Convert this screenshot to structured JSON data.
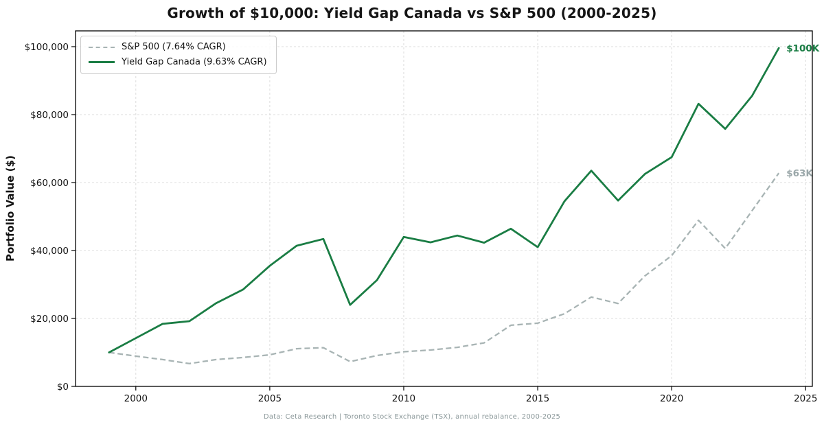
{
  "footer": {
    "caption": "Data: Ceta Research | Toronto Stock Exchange (TSX), annual rebalance, 2000-2025"
  },
  "colors": {
    "sp500_line": "#a8b4b4",
    "yield_gap_line": "#1a7d44",
    "sp500_annotation": "#9aa7a9",
    "yield_gap_annotation": "#1a7d44",
    "grid": "#dcdcdc",
    "spine": "#000000",
    "tick_label": "#141414",
    "footer_text": "#8b989a"
  },
  "chart_data": {
    "type": "line",
    "title": "Growth of $10,000: Yield Gap Canada vs S&P 500 (2000-2025)",
    "xlabel": "",
    "ylabel": "Portfolio Value ($)",
    "grid": true,
    "legend_position": "upper-left",
    "xlim": [
      1997.75,
      2025.25
    ],
    "ylim": [
      0,
      104650
    ],
    "x_ticks": [
      {
        "value": 2000,
        "label": "2000"
      },
      {
        "value": 2005,
        "label": "2005"
      },
      {
        "value": 2010,
        "label": "2010"
      },
      {
        "value": 2015,
        "label": "2015"
      },
      {
        "value": 2020,
        "label": "2020"
      },
      {
        "value": 2025,
        "label": "2025"
      }
    ],
    "y_ticks": [
      {
        "value": 0,
        "label": "$0"
      },
      {
        "value": 20000,
        "label": "$20,000"
      },
      {
        "value": 40000,
        "label": "$40,000"
      },
      {
        "value": 60000,
        "label": "$60,000"
      },
      {
        "value": 80000,
        "label": "$80,000"
      },
      {
        "value": 100000,
        "label": "$100,000"
      }
    ],
    "x": [
      1999,
      2000,
      2001,
      2002,
      2003,
      2004,
      2005,
      2006,
      2007,
      2008,
      2009,
      2010,
      2011,
      2012,
      2013,
      2014,
      2015,
      2016,
      2017,
      2018,
      2019,
      2020,
      2021,
      2022,
      2023,
      2024
    ],
    "series": [
      {
        "id": "sp500",
        "name": "S&P 500 (7.64% CAGR)",
        "style": "dashed",
        "color": "#a8b4b4",
        "end_label": "$63K",
        "end_label_color": "#9aa7a9",
        "values": [
          10000,
          8900,
          7900,
          6700,
          7900,
          8500,
          9300,
          11100,
          11400,
          7300,
          9100,
          10200,
          10700,
          11500,
          12800,
          18000,
          18600,
          21400,
          26300,
          24400,
          32500,
          38500,
          48900,
          40600,
          51700,
          62800
        ]
      },
      {
        "id": "yield-gap-canada",
        "name": "Yield Gap Canada (9.63% CAGR)",
        "style": "solid",
        "color": "#1a7d44",
        "end_label": "$100K",
        "end_label_color": "#1a7d44",
        "values": [
          10000,
          14200,
          18400,
          19200,
          24500,
          28500,
          35500,
          41400,
          43400,
          24000,
          31300,
          44000,
          42400,
          44400,
          42300,
          46400,
          41000,
          54500,
          63500,
          54700,
          62500,
          67500,
          83200,
          75800,
          85500,
          99600
        ]
      }
    ]
  }
}
